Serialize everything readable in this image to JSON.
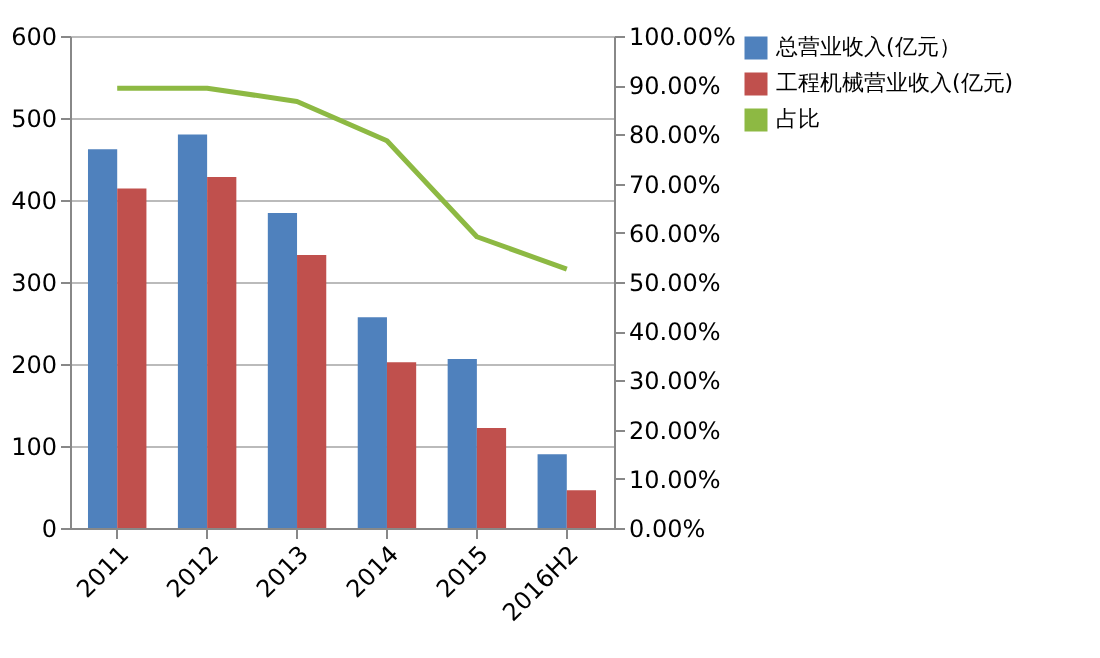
{
  "chart_data": {
    "type": "bar",
    "categories": [
      "2011",
      "2012",
      "2013",
      "2014",
      "2015",
      "2016H2"
    ],
    "series": [
      {
        "name": "总营业收入(亿元）",
        "color": "#4f81bd",
        "values": [
          462,
          480,
          384,
          257,
          206,
          90
        ]
      },
      {
        "name": "工程机械营业收入(亿元)",
        "color": "#c0504d",
        "values": [
          414,
          428,
          333,
          202,
          122,
          46
        ]
      },
      {
        "name": "占比",
        "type": "line",
        "axis": "y2",
        "color": "#8db943",
        "values": [
          89.4,
          89.4,
          86.7,
          78.7,
          59.2,
          52.6
        ]
      }
    ],
    "ylim": [
      0,
      600
    ],
    "yticks": [
      0,
      100,
      200,
      300,
      400,
      500,
      600
    ],
    "y2lim": [
      0,
      100
    ],
    "y2ticks": [
      {
        "value": 0,
        "label": "0.00%"
      },
      {
        "value": 10,
        "label": "10.00%"
      },
      {
        "value": 20,
        "label": "20.00%"
      },
      {
        "value": 30,
        "label": "30.00%"
      },
      {
        "value": 40,
        "label": "40.00%"
      },
      {
        "value": 50,
        "label": "50.00%"
      },
      {
        "value": 60,
        "label": "60.00%"
      },
      {
        "value": 70,
        "label": "70.00%"
      },
      {
        "value": 80,
        "label": "80.00%"
      },
      {
        "value": 90,
        "label": "90.00%"
      },
      {
        "value": 100,
        "label": "100.00%"
      }
    ],
    "grid": "y",
    "legend": "right",
    "marker": "none"
  }
}
